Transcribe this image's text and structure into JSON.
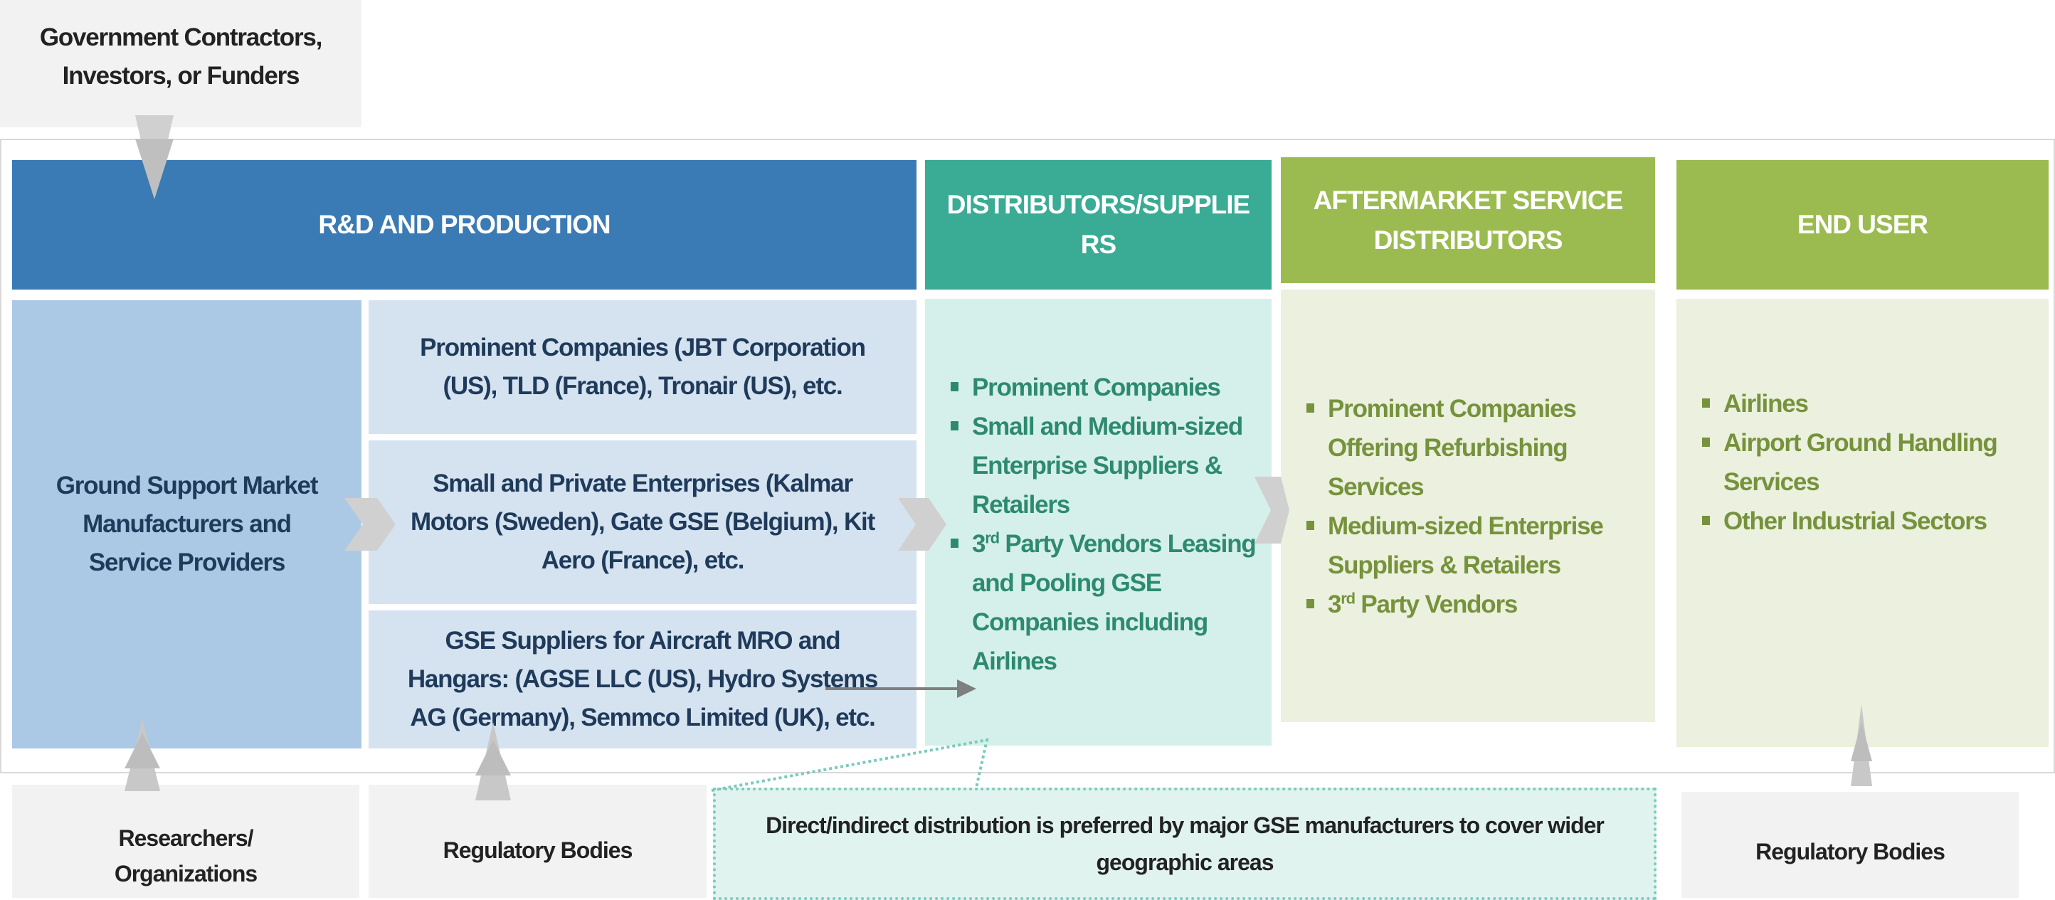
{
  "top_box": {
    "label": "Government Contractors, Investors, or Funders"
  },
  "headers": {
    "rd": "R&D AND PRODUCTION",
    "distributors": "DISTRIBUTORS/SUPPLIE RS",
    "aftermarket": "AFTERMARKET SERVICE DISTRIBUTORS",
    "end_user": "END USER"
  },
  "rd": {
    "left": "Ground Support Market Manufacturers and Service Providers",
    "rows": [
      "Prominent Companies (JBT Corporation (US), TLD (France), Tronair (US), etc.",
      "Small and Private Enterprises (Kalmar Motors (Sweden), Gate GSE (Belgium), Kit Aero (France), etc.",
      "GSE Suppliers for Aircraft MRO and Hangars: (AGSE LLC (US), Hydro Systems AG (Germany), Semmco Limited (UK), etc."
    ]
  },
  "distributors": {
    "items": [
      {
        "pre": "Prominent Companies",
        "sup": "",
        "post": ""
      },
      {
        "pre": "Small and Medium-sized Enterprise Suppliers & Retailers",
        "sup": "",
        "post": ""
      },
      {
        "pre": "3",
        "sup": "rd",
        "post": " Party Vendors Leasing and Pooling GSE Companies including Airlines"
      }
    ]
  },
  "aftermarket": {
    "items": [
      {
        "pre": "Prominent Companies Offering Refurbishing Services",
        "sup": "",
        "post": ""
      },
      {
        "pre": "Medium-sized Enterprise Suppliers & Retailers",
        "sup": "",
        "post": ""
      },
      {
        "pre": "3",
        "sup": "rd",
        "post": " Party Vendors"
      }
    ]
  },
  "end_user": {
    "items": [
      "Airlines",
      "Airport Ground Handling Services",
      "Other Industrial Sectors"
    ]
  },
  "bottom": {
    "researchers": "Researchers/ Organizations",
    "regulatory_left": "Regulatory Bodies",
    "note": "Direct/indirect distribution is preferred by major GSE manufacturers to cover wider geographic areas",
    "regulatory_right": "Regulatory Bodies"
  },
  "colors": {
    "rd_header": "#3a7ab5",
    "dist_header": "#3aab94",
    "green_header": "#9bbb50",
    "left_body": "#abc9e5",
    "row_body": "#d5e3f0",
    "dist_body": "#d5f0ea",
    "green_body": "#ebf1de",
    "gray": "#f2f2f2"
  }
}
